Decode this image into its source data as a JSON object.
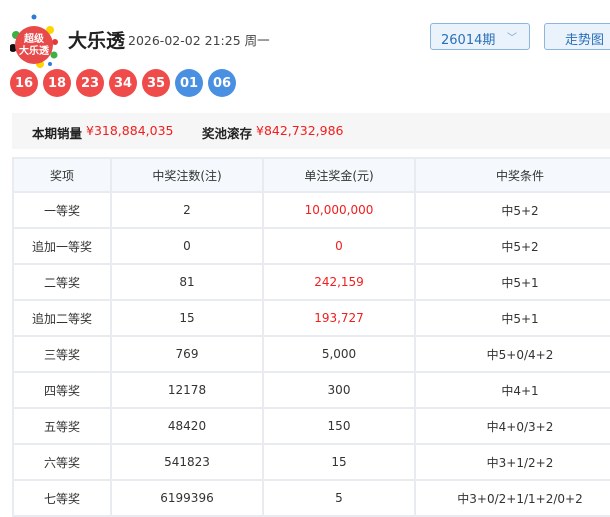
{
  "header": {
    "logo_text": "超级大乐透",
    "title": "大乐透",
    "datetime": "2026-02-02 21:25 周一",
    "period_select": "26014期",
    "trend_button": "走势图"
  },
  "balls": {
    "front": [
      "16",
      "18",
      "23",
      "34",
      "35"
    ],
    "back": [
      "01",
      "06"
    ]
  },
  "colors": {
    "front_ball": "#ef4b4b",
    "back_ball": "#4a90e2",
    "money": "#f21d1d"
  },
  "stats": {
    "sales_label": "本期销量",
    "sales_value": "¥318,884,035",
    "pool_label": "奖池滚存",
    "pool_value": "¥842,732,986"
  },
  "table": {
    "headers": [
      "奖项",
      "中奖注数(注)",
      "单注奖金(元)",
      "中奖条件"
    ],
    "rows": [
      {
        "prize": "一等奖",
        "count": "2",
        "amount": "10,000,000",
        "cond": "中5+2",
        "red": true
      },
      {
        "prize": "追加一等奖",
        "count": "0",
        "amount": "0",
        "cond": "中5+2",
        "red": true
      },
      {
        "prize": "二等奖",
        "count": "81",
        "amount": "242,159",
        "cond": "中5+1",
        "red": true
      },
      {
        "prize": "追加二等奖",
        "count": "15",
        "amount": "193,727",
        "cond": "中5+1",
        "red": true
      },
      {
        "prize": "三等奖",
        "count": "769",
        "amount": "5,000",
        "cond": "中5+0/4+2",
        "red": false
      },
      {
        "prize": "四等奖",
        "count": "12178",
        "amount": "300",
        "cond": "中4+1",
        "red": false
      },
      {
        "prize": "五等奖",
        "count": "48420",
        "amount": "150",
        "cond": "中4+0/3+2",
        "red": false
      },
      {
        "prize": "六等奖",
        "count": "541823",
        "amount": "15",
        "cond": "中3+1/2+2",
        "red": false
      },
      {
        "prize": "七等奖",
        "count": "6199396",
        "amount": "5",
        "cond": "中3+0/2+1/1+2/0+2",
        "red": false
      }
    ]
  }
}
